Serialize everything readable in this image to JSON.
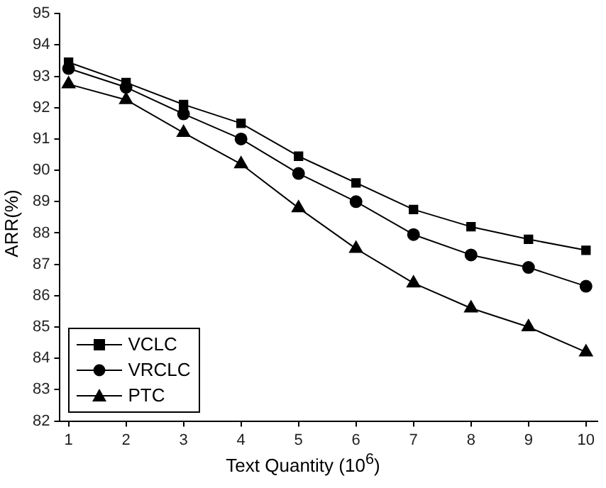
{
  "chart_data": {
    "type": "line",
    "xlabel": "Text Quantity (10$^{6}$)",
    "ylabel": "ARR(%)",
    "x": [
      1,
      2,
      3,
      4,
      5,
      6,
      7,
      8,
      9,
      10
    ],
    "xlim": [
      0.85,
      10.2
    ],
    "xticks": [
      1,
      2,
      3,
      4,
      5,
      6,
      7,
      8,
      9,
      10
    ],
    "ylim": [
      82,
      95
    ],
    "yticks": [
      82,
      83,
      84,
      85,
      86,
      87,
      88,
      89,
      90,
      91,
      92,
      93,
      94,
      95
    ],
    "grid": false,
    "legend": "bottom left",
    "line_style": "solid",
    "series": [
      {
        "name": "VCLC",
        "color": "#000000",
        "marker": "square",
        "values": [
          93.45,
          92.8,
          92.1,
          91.5,
          90.45,
          89.6,
          88.75,
          88.2,
          87.8,
          87.45
        ]
      },
      {
        "name": "VRCLC",
        "color": "#000000",
        "marker": "circle",
        "values": [
          93.25,
          92.65,
          91.8,
          91.0,
          89.9,
          89.0,
          87.95,
          87.3,
          86.9,
          86.3
        ]
      },
      {
        "name": "PTC",
        "color": "#000000",
        "marker": "triangle",
        "values": [
          92.75,
          92.25,
          91.2,
          90.2,
          88.8,
          87.5,
          86.4,
          85.6,
          85.0,
          84.2
        ]
      }
    ]
  }
}
